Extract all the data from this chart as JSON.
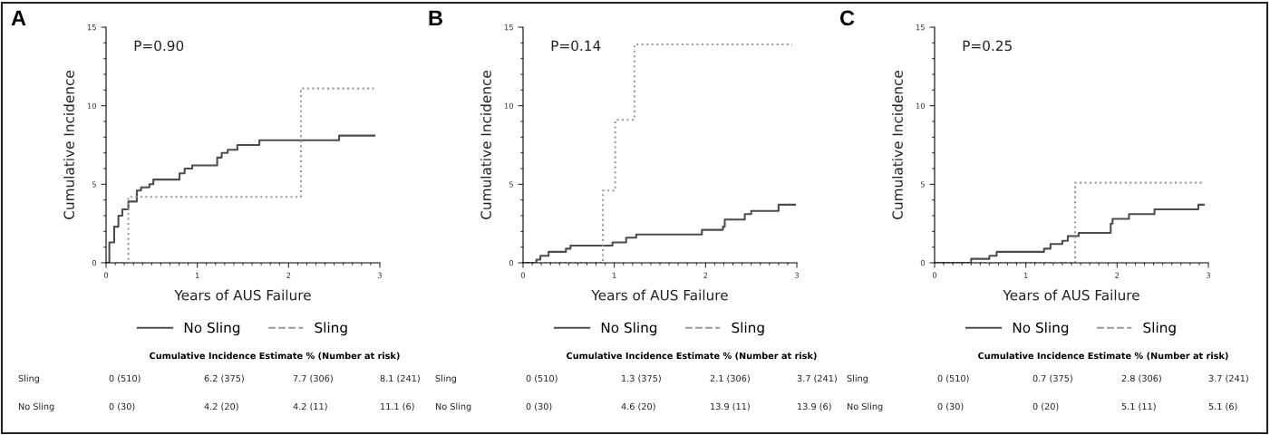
{
  "chart_data": [
    {
      "type": "step",
      "title": "A",
      "xlabel": "Years of AUS Failure",
      "ylabel": "Cumulative Incidence",
      "xlim": [
        0,
        3
      ],
      "ylim": [
        0,
        15
      ],
      "xticks": [
        0,
        1,
        2,
        3
      ],
      "yticks": [
        0,
        5,
        10,
        15
      ],
      "legend": "bottom",
      "series": [
        {
          "name": "No Sling",
          "color": "#4d4d4d",
          "line_style": "solid",
          "x": [
            0.013,
            0.036,
            0.046,
            0.089,
            0.135,
            0.178,
            0.244,
            0.337,
            0.383,
            0.475,
            0.518,
            0.805,
            0.861,
            0.944,
            1.218,
            1.267,
            1.333,
            1.439,
            1.68,
            2.554,
            2.941
          ],
          "values": [
            0,
            1.3,
            1.3,
            2.3,
            3.0,
            3.4,
            3.9,
            4.6,
            4.8,
            5.0,
            5.3,
            5.7,
            6.0,
            6.2,
            6.7,
            7.0,
            7.2,
            7.5,
            7.8,
            8.1,
            8.1
          ]
        },
        {
          "name": "Sling",
          "color": "#9a9a9a",
          "line_style": "dotted",
          "x": [
            0.112,
            0.244,
            2.135,
            2.934
          ],
          "values": [
            0,
            4.2,
            11.1,
            11.1
          ]
        }
      ],
      "annotations": [
        "P=0.90",
        "Cumulative Incidence Estimate % (Number at risk)",
        "Sling",
        "0 (510)",
        "6.2 (375)",
        "7.7 (306)",
        "8.1 (241)",
        "No Sling",
        "0 (30)",
        "4.2 (20)",
        "4.2 (11)",
        "11.1 (6)"
      ]
    },
    {
      "type": "step",
      "title": "B",
      "xlabel": "Years of AUS Failure",
      "ylabel": "Cumulative Incidence",
      "xlim": [
        0,
        3
      ],
      "ylim": [
        0,
        15
      ],
      "xticks": [
        0,
        1,
        2,
        3
      ],
      "yticks": [
        0,
        5,
        10,
        15
      ],
      "legend": "bottom",
      "series": [
        {
          "name": "No Sling",
          "color": "#4d4d4d",
          "line_style": "solid",
          "x": [
            0.017,
            0.146,
            0.19,
            0.28,
            0.47,
            0.52,
            0.98,
            1.13,
            1.24,
            1.96,
            2.19,
            2.21,
            2.43,
            2.5,
            2.8,
            2.98
          ],
          "values": [
            0,
            0.2,
            0.45,
            0.7,
            0.9,
            1.1,
            1.3,
            1.6,
            1.8,
            2.1,
            2.3,
            2.75,
            3.1,
            3.3,
            3.7,
            3.7
          ]
        },
        {
          "name": "Sling",
          "color": "#9a9a9a",
          "line_style": "dotted",
          "x": [
            0.017,
            0.875,
            1.01,
            1.22,
            2.95
          ],
          "values": [
            0,
            4.6,
            9.1,
            13.9,
            13.9
          ]
        }
      ],
      "annotations": [
        "P=0.14",
        "Cumulative Incidence Estimate % (Number at risk)",
        "Sling",
        "0 (510)",
        "1.3 (375)",
        "2.1 (306)",
        "3.7 (241)",
        "No Sling",
        "0 (30)",
        "4.6 (20)",
        "13.9 (11)",
        "13.9 (6)"
      ]
    },
    {
      "type": "step",
      "title": "C",
      "xlabel": "Years of AUS Failure",
      "ylabel": "Cumulative Incidence",
      "xlim": [
        0,
        3
      ],
      "ylim": [
        0,
        15
      ],
      "xticks": [
        0,
        1,
        2,
        3
      ],
      "yticks": [
        0,
        5,
        10,
        15
      ],
      "legend": "bottom",
      "series": [
        {
          "name": "No Sling",
          "color": "#4d4d4d",
          "line_style": "solid",
          "x": [
            0,
            0.4,
            0.6,
            0.68,
            1.2,
            1.27,
            1.4,
            1.46,
            1.58,
            1.93,
            1.95,
            2.13,
            2.41,
            2.89,
            2.95
          ],
          "values": [
            0,
            0.25,
            0.45,
            0.7,
            0.9,
            1.2,
            1.4,
            1.7,
            1.9,
            2.5,
            2.8,
            3.1,
            3.4,
            3.7,
            3.7
          ]
        },
        {
          "name": "Sling",
          "color": "#9a9a9a",
          "line_style": "dotted",
          "x": [
            0,
            1.54,
            2.95
          ],
          "values": [
            0,
            5.1,
            5.1
          ]
        }
      ],
      "annotations": [
        "P=0.25",
        "Cumulative Incidence Estimate % (Number at risk)",
        "Sling",
        "0 (510)",
        "0.7 (375)",
        "2.8 (306)",
        "3.7 (241)",
        "No Sling",
        "0 (30)",
        "0 (20)",
        "5.1 (11)",
        "5.1 (6)"
      ]
    }
  ]
}
